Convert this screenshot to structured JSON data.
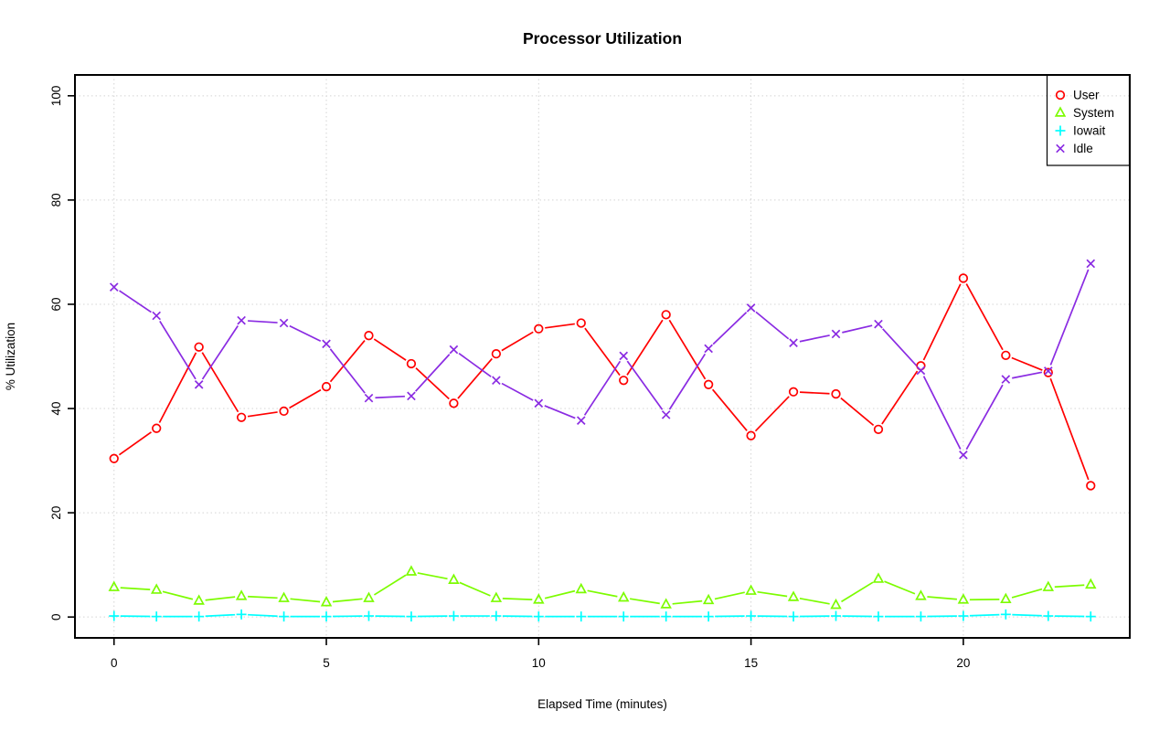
{
  "figure": {
    "title": "Processor Utilization"
  },
  "chart_data": {
    "type": "line",
    "title": "Processor Utilization",
    "xlabel": "Elapsed Time (minutes)",
    "ylabel": "% Utilization",
    "xlim": [
      0,
      23
    ],
    "ylim": [
      0,
      100
    ],
    "xticks": [
      0,
      5,
      10,
      15,
      20
    ],
    "yticks": [
      0,
      20,
      40,
      60,
      80,
      100
    ],
    "grid": true,
    "grid_style": "dotted",
    "grid_color": "#d4d4d4",
    "legend_position": "top-right",
    "x": [
      0,
      1,
      2,
      3,
      4,
      5,
      6,
      7,
      8,
      9,
      10,
      11,
      12,
      13,
      14,
      15,
      16,
      17,
      18,
      19,
      20,
      21,
      22,
      23
    ],
    "series": [
      {
        "name": "User",
        "color": "#ff0000",
        "marker": "circle",
        "values": [
          30.4,
          36.2,
          51.8,
          38.3,
          39.5,
          44.2,
          54.0,
          48.6,
          41.0,
          50.5,
          55.3,
          56.4,
          45.4,
          58.0,
          44.6,
          34.8,
          43.2,
          42.8,
          36.0,
          48.2,
          65.0,
          50.2,
          46.9,
          25.2
        ]
      },
      {
        "name": "System",
        "color": "#7cfc00",
        "marker": "triangle",
        "values": [
          5.7,
          5.2,
          3.1,
          4.0,
          3.6,
          2.8,
          3.6,
          8.7,
          7.1,
          3.6,
          3.3,
          5.3,
          3.7,
          2.4,
          3.2,
          5.0,
          3.8,
          2.3,
          7.3,
          4.0,
          3.3,
          3.4,
          5.7,
          6.2
        ]
      },
      {
        "name": "Iowait",
        "color": "#00ffff",
        "marker": "plus",
        "values": [
          0.2,
          0.1,
          0.1,
          0.5,
          0.1,
          0.1,
          0.2,
          0.1,
          0.2,
          0.2,
          0.1,
          0.1,
          0.1,
          0.1,
          0.1,
          0.2,
          0.1,
          0.2,
          0.1,
          0.1,
          0.2,
          0.5,
          0.2,
          0.1
        ]
      },
      {
        "name": "Idle",
        "color": "#8a2be2",
        "marker": "x",
        "values": [
          63.3,
          57.8,
          44.6,
          56.9,
          56.4,
          52.4,
          42.0,
          42.4,
          51.3,
          45.4,
          41.0,
          37.7,
          50.1,
          38.8,
          51.5,
          59.3,
          52.6,
          54.3,
          56.2,
          47.3,
          31.1,
          45.6,
          47.2,
          67.8
        ]
      }
    ]
  }
}
